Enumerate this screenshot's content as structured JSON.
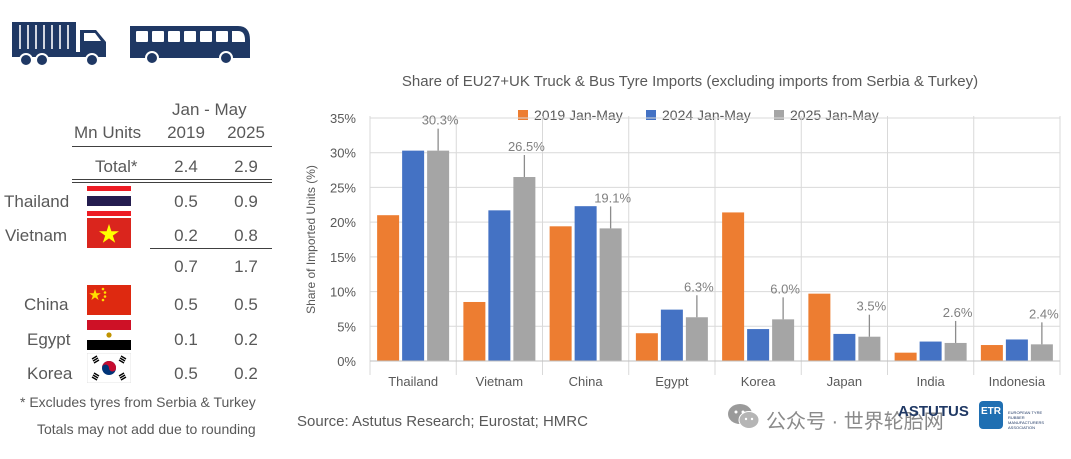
{
  "table": {
    "header_period": "Jan - May",
    "header_units": "Mn Units",
    "header_y1": "2019",
    "header_y2": "2025",
    "total_label": "Total*",
    "total_2019": "2.4",
    "total_2025": "2.9",
    "rows": [
      {
        "country": "Thailand",
        "v2019": "0.5",
        "v2025": "0.9"
      },
      {
        "country": "Vietnam",
        "v2019": "0.2",
        "v2025": "0.8"
      },
      {
        "country": "",
        "v2019": "0.7",
        "v2025": "1.7"
      },
      {
        "country": "China",
        "v2019": "0.5",
        "v2025": "0.5"
      },
      {
        "country": "Egypt",
        "v2019": "0.1",
        "v2025": "0.2"
      },
      {
        "country": "Korea",
        "v2019": "0.5",
        "v2025": "0.2"
      }
    ],
    "footnote1": "* Excludes tyres from Serbia & Turkey",
    "footnote2": "Totals may not add due to rounding"
  },
  "source": "Source: Astutus Research; Eurostat; HMRC",
  "watermark": {
    "text": "公众号 · 世界轮胎网",
    "brand": "ASTUTUS",
    "brand2": "ETR",
    "brand2_sub": "EUROPEAN TYRE RUBBER MANUFACTURERS ASSOCIATION"
  },
  "colors": {
    "navy": "#1F3864",
    "s2019": "#ED7D31",
    "s2024": "#4472C4",
    "s2025": "#A5A5A5",
    "grid": "#D9D9D9",
    "text": "#595959"
  },
  "chart_data": {
    "type": "bar",
    "title": "Share of EU27+UK Truck & Bus Tyre Imports (excluding imports from Serbia & Turkey)",
    "ylabel": "Share of Imported Units (%)",
    "xlabel": "",
    "ylim": [
      0,
      35
    ],
    "yticks": [
      0,
      5,
      10,
      15,
      20,
      25,
      30,
      35
    ],
    "ytick_labels": [
      "0%",
      "5%",
      "10%",
      "15%",
      "20%",
      "25%",
      "30%",
      "35%"
    ],
    "categories": [
      "Thailand",
      "Vietnam",
      "China",
      "Egypt",
      "Korea",
      "Japan",
      "India",
      "Indonesia"
    ],
    "series": [
      {
        "name": "2019 Jan-May",
        "values": [
          21.0,
          8.5,
          19.4,
          4.0,
          21.4,
          9.7,
          1.2,
          2.3
        ]
      },
      {
        "name": "2024 Jan-May",
        "values": [
          30.3,
          21.7,
          22.3,
          7.4,
          4.6,
          3.9,
          2.8,
          3.1
        ]
      },
      {
        "name": "2025 Jan-May",
        "values": [
          30.3,
          26.5,
          19.1,
          6.3,
          6.0,
          3.5,
          2.6,
          2.4
        ]
      }
    ],
    "data_labels": [
      "30.3%",
      "26.5%",
      "19.1%",
      "6.3%",
      "6.0%",
      "3.5%",
      "2.6%",
      "2.4%"
    ],
    "legend_position": "top"
  }
}
